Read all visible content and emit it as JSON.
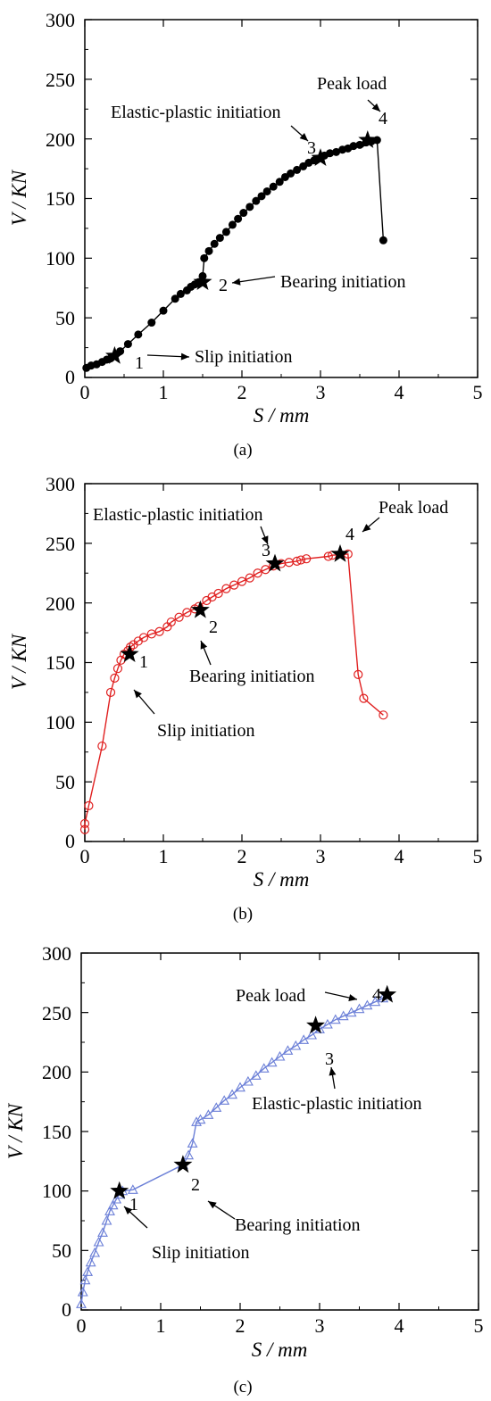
{
  "chart_data": [
    {
      "type": "line",
      "panel_label": "(a)",
      "xlabel": "S / mm",
      "ylabel": "V / KN",
      "xlim": [
        0,
        5
      ],
      "ylim": [
        0,
        300
      ],
      "xticks": [
        "0",
        "1",
        "2",
        "3",
        "4",
        "5"
      ],
      "yticks": [
        "0",
        "50",
        "100",
        "150",
        "200",
        "250",
        "300"
      ],
      "grid": false,
      "color": "#000000",
      "marker": "filled-circle",
      "series": [
        {
          "x": [
            0.02,
            0.08,
            0.15,
            0.22,
            0.28,
            0.33,
            0.38,
            0.45,
            0.55,
            0.68,
            0.85,
            1.0,
            1.15,
            1.22,
            1.3,
            1.35,
            1.4,
            1.45,
            1.5,
            1.52,
            1.58,
            1.65,
            1.72,
            1.8,
            1.88,
            1.95,
            2.02,
            2.1,
            2.18,
            2.25,
            2.32,
            2.4,
            2.48,
            2.55,
            2.62,
            2.7,
            2.78,
            2.85,
            2.92,
            3.0,
            3.05,
            3.12,
            3.2,
            3.28,
            3.35,
            3.42,
            3.5,
            3.58,
            3.65,
            3.72,
            3.8
          ],
          "y": [
            8,
            10,
            11,
            13,
            15,
            16,
            18,
            22,
            28,
            36,
            46,
            56,
            66,
            70,
            73,
            76,
            78,
            80,
            85,
            100,
            106,
            112,
            117,
            122,
            128,
            133,
            138,
            143,
            148,
            152,
            156,
            160,
            164,
            168,
            171,
            174,
            177,
            180,
            182,
            184,
            186,
            188,
            189,
            191,
            192,
            194,
            195,
            197,
            198,
            199,
            115
          ]
        }
      ],
      "key_points": [
        {
          "label": "1",
          "x": 0.38,
          "y": 18
        },
        {
          "label": "2",
          "x": 1.5,
          "y": 80
        },
        {
          "label": "3",
          "x": 3.0,
          "y": 184
        },
        {
          "label": "4",
          "x": 3.6,
          "y": 199
        }
      ],
      "annotations": [
        "Slip initiation",
        "Bearing initiation",
        "Elastic-plastic initiation",
        "Peak load"
      ]
    },
    {
      "type": "line",
      "panel_label": "(b)",
      "xlabel": "S / mm",
      "ylabel": "V / KN",
      "xlim": [
        0,
        5
      ],
      "ylim": [
        0,
        300
      ],
      "xticks": [
        "0",
        "1",
        "2",
        "3",
        "4",
        "5"
      ],
      "yticks": [
        "0",
        "50",
        "100",
        "150",
        "200",
        "250",
        "300"
      ],
      "grid": false,
      "color": "#e02020",
      "marker": "open-circle",
      "series": [
        {
          "x": [
            0.0,
            0.0,
            0.05,
            0.22,
            0.33,
            0.38,
            0.42,
            0.46,
            0.5,
            0.55,
            0.58,
            0.62,
            0.68,
            0.75,
            0.85,
            0.95,
            1.05,
            1.1,
            1.2,
            1.3,
            1.4,
            1.45,
            1.55,
            1.62,
            1.7,
            1.8,
            1.9,
            2.0,
            2.1,
            2.2,
            2.3,
            2.4,
            2.5,
            2.6,
            2.7,
            2.75,
            2.82,
            3.1,
            3.15,
            3.35,
            3.48,
            3.55,
            3.8
          ],
          "y": [
            10,
            15,
            30,
            80,
            125,
            137,
            145,
            152,
            157,
            160,
            163,
            165,
            168,
            171,
            174,
            176,
            180,
            184,
            188,
            192,
            195,
            197,
            202,
            205,
            208,
            212,
            215,
            218,
            221,
            225,
            228,
            231,
            233,
            234,
            235,
            236,
            237,
            239,
            240,
            241,
            140,
            120,
            106
          ]
        }
      ],
      "key_points": [
        {
          "label": "1",
          "x": 0.57,
          "y": 157
        },
        {
          "label": "2",
          "x": 1.47,
          "y": 194
        },
        {
          "label": "3",
          "x": 2.42,
          "y": 233
        },
        {
          "label": "4",
          "x": 3.25,
          "y": 241
        }
      ],
      "annotations": [
        "Slip initiation",
        "Bearing initiation",
        "Elastic-plastic initiation",
        "Peak load"
      ]
    },
    {
      "type": "line",
      "panel_label": "(c)",
      "xlabel": "S / mm",
      "ylabel": "V / KN",
      "xlim": [
        0,
        5
      ],
      "ylim": [
        0,
        300
      ],
      "xticks": [
        "0",
        "1",
        "2",
        "3",
        "4",
        "5"
      ],
      "yticks": [
        "0",
        "50",
        "100",
        "150",
        "200",
        "250",
        "300"
      ],
      "grid": false,
      "color": "#6b7fd7",
      "marker": "open-triangle",
      "series": [
        {
          "x": [
            0.0,
            0.02,
            0.05,
            0.08,
            0.12,
            0.17,
            0.22,
            0.27,
            0.32,
            0.36,
            0.4,
            0.44,
            0.48,
            0.52,
            0.65,
            1.28,
            1.35,
            1.4,
            1.45,
            1.5,
            1.6,
            1.7,
            1.8,
            1.9,
            2.0,
            2.1,
            2.2,
            2.3,
            2.4,
            2.5,
            2.6,
            2.7,
            2.8,
            2.9,
            3.0,
            3.1,
            3.2,
            3.3,
            3.4,
            3.5,
            3.6,
            3.7,
            3.8,
            3.85
          ],
          "y": [
            5,
            15,
            25,
            32,
            40,
            48,
            57,
            65,
            75,
            83,
            88,
            93,
            97,
            100,
            101,
            122,
            130,
            140,
            158,
            160,
            164,
            170,
            176,
            181,
            187,
            192,
            197,
            203,
            208,
            213,
            218,
            222,
            227,
            231,
            236,
            240,
            244,
            247,
            250,
            253,
            256,
            259,
            262,
            265
          ]
        }
      ],
      "key_points": [
        {
          "label": "1",
          "x": 0.48,
          "y": 100
        },
        {
          "label": "2",
          "x": 1.28,
          "y": 122
        },
        {
          "label": "3",
          "x": 2.95,
          "y": 239
        },
        {
          "label": "4",
          "x": 3.85,
          "y": 265
        }
      ],
      "annotations": [
        "Slip initiation",
        "Bearing initiation",
        "Elastic-plastic initiation",
        "Peak load"
      ]
    }
  ]
}
